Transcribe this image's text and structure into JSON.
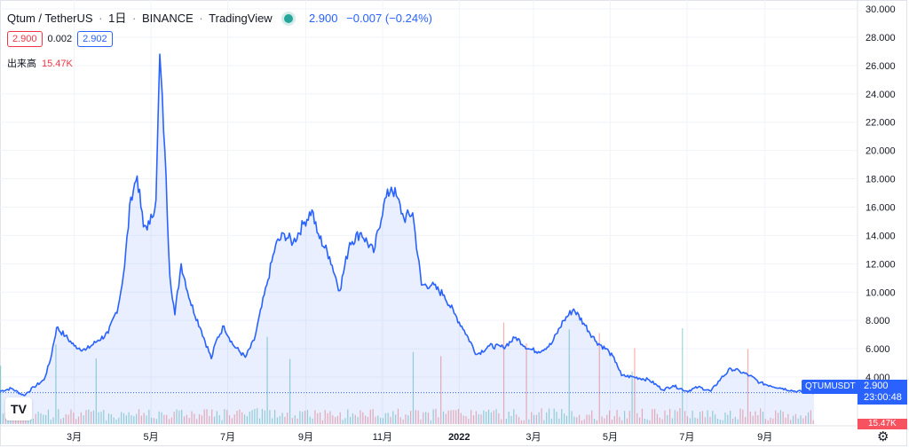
{
  "header": {
    "symbol": "Qtum / TetherUS",
    "interval": "1日",
    "exchange": "BINANCE",
    "source": "TradingView",
    "last_price": "2.900",
    "change": "−0.007 (−0.24%)"
  },
  "quotes": {
    "bid": "2.900",
    "spread": "0.002",
    "ask": "2.902"
  },
  "volume_legend": {
    "label": "出来高",
    "value": "15.47K"
  },
  "price_tag": {
    "symbol": "QTUMUSDT",
    "price": "2.900",
    "countdown": "23:00:48"
  },
  "volume_tag": "15.47K",
  "icons": {
    "logo": "tradingview-logo-icon",
    "settings": "gear-icon",
    "status": "market-open-dot-icon"
  },
  "colors": {
    "line": "#2962ff",
    "fill": "rgba(41,98,255,0.10)",
    "bid": "#f23645",
    "ask": "#2962ff",
    "vol_up": "rgba(38,166,154,0.45)",
    "vol_down": "rgba(239,83,80,0.45)"
  },
  "chart_data": {
    "type": "area",
    "title": "Qtum / TetherUS · 1日 · BINANCE",
    "ylim": [
      0,
      30
    ],
    "y_ticks": [
      "4.000",
      "6.000",
      "8.000",
      "10.000",
      "12.000",
      "14.000",
      "16.000",
      "18.000",
      "20.000",
      "22.000",
      "24.000",
      "26.000",
      "28.000",
      "30.000"
    ],
    "x_tick_labels": [
      "3月",
      "5月",
      "7月",
      "9月",
      "11月",
      "2022",
      "3月",
      "5月",
      "7月",
      "9月"
    ],
    "x_tick_dates": [
      "2021-03-01",
      "2021-05-01",
      "2021-07-01",
      "2021-09-01",
      "2021-11-01",
      "2022-01-01",
      "2022-03-01",
      "2022-05-01",
      "2022-07-01",
      "2022-09-01"
    ],
    "x_range": [
      "2021-01-01",
      "2022-10-10"
    ],
    "series": [
      {
        "x": [
          "2021-01-01",
          "2021-01-10",
          "2021-01-20",
          "2021-01-28",
          "2021-02-05",
          "2021-02-10",
          "2021-02-15",
          "2021-02-22",
          "2021-03-01",
          "2021-03-10",
          "2021-03-20",
          "2021-03-28",
          "2021-04-05",
          "2021-04-10",
          "2021-04-15",
          "2021-04-20",
          "2021-04-25",
          "2021-04-30",
          "2021-05-05",
          "2021-05-08",
          "2021-05-12",
          "2021-05-16",
          "2021-05-20",
          "2021-05-25",
          "2021-06-01",
          "2021-06-10",
          "2021-06-18",
          "2021-06-22",
          "2021-06-28",
          "2021-07-05",
          "2021-07-15",
          "2021-07-22",
          "2021-08-01",
          "2021-08-08",
          "2021-08-15",
          "2021-08-22",
          "2021-08-30",
          "2021-09-06",
          "2021-09-10",
          "2021-09-20",
          "2021-09-28",
          "2021-10-06",
          "2021-10-15",
          "2021-10-25",
          "2021-11-02",
          "2021-11-08",
          "2021-11-12",
          "2021-11-18",
          "2021-11-25",
          "2021-12-02",
          "2021-12-10",
          "2021-12-20",
          "2021-12-28",
          "2022-01-05",
          "2022-01-15",
          "2022-01-25",
          "2022-02-05",
          "2022-02-15",
          "2022-02-25",
          "2022-03-05",
          "2022-03-15",
          "2022-03-25",
          "2022-04-02",
          "2022-04-10",
          "2022-04-20",
          "2022-04-30",
          "2022-05-06",
          "2022-05-10",
          "2022-05-20",
          "2022-06-01",
          "2022-06-12",
          "2022-06-20",
          "2022-07-01",
          "2022-07-10",
          "2022-07-20",
          "2022-07-28",
          "2022-08-05",
          "2022-08-12",
          "2022-08-20",
          "2022-08-28",
          "2022-09-05",
          "2022-09-15",
          "2022-09-25",
          "2022-10-05",
          "2022-10-10"
        ],
        "y": [
          3.0,
          3.2,
          2.7,
          3.3,
          3.8,
          5.2,
          7.5,
          6.9,
          6.2,
          5.9,
          6.6,
          7.1,
          9.0,
          11.8,
          16.7,
          18.2,
          14.6,
          14.8,
          16.5,
          26.8,
          20.0,
          11.2,
          8.4,
          12.0,
          9.4,
          7.3,
          5.3,
          6.6,
          7.6,
          6.3,
          5.4,
          6.6,
          10.5,
          13.3,
          14.1,
          13.5,
          14.8,
          15.8,
          14.2,
          12.5,
          10.1,
          13.5,
          14.2,
          12.8,
          16.2,
          17.4,
          16.8,
          15.2,
          15.6,
          10.5,
          10.5,
          9.8,
          8.5,
          7.3,
          5.6,
          6.2,
          6.1,
          6.8,
          6.0,
          5.8,
          6.3,
          8.0,
          8.8,
          7.8,
          6.5,
          5.8,
          5.0,
          4.1,
          4.0,
          3.8,
          3.1,
          3.4,
          3.0,
          3.3,
          3.0,
          3.9,
          4.6,
          4.4,
          4.1,
          3.6,
          3.4,
          3.2,
          3.0,
          2.95,
          2.9
        ]
      }
    ]
  }
}
